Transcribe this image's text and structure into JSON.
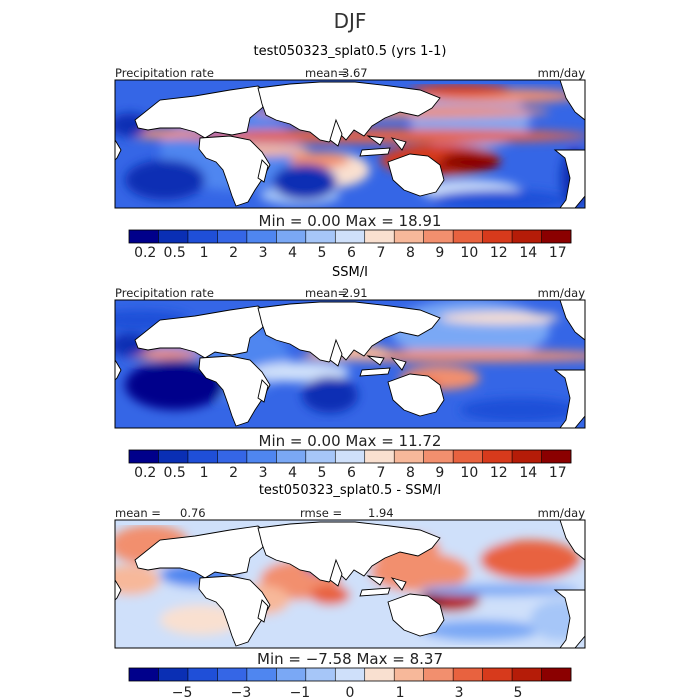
{
  "figure_title": "DJF",
  "chart_data": [
    {
      "type": "heatmap",
      "title": "test050323_splat0.5 (yrs 1-1)",
      "field_label": "Precipitation rate",
      "units": "mm/day",
      "mean_label": "mean=",
      "mean": "3.67",
      "min_label": "Min =",
      "min": "0.00",
      "max_label": "Max =",
      "max": "18.91",
      "colorbar_levels": [
        "0.2",
        "0.5",
        "1",
        "2",
        "3",
        "4",
        "5",
        "6",
        "7",
        "8",
        "9",
        "10",
        "12",
        "14",
        "17"
      ],
      "colorbar_tick_labels": [
        "0.2",
        "0.5",
        "1",
        "2",
        "3",
        "4",
        "5",
        "6",
        "7",
        "8",
        "9",
        "10",
        "12",
        "14",
        "17"
      ],
      "colors": [
        "#00008b",
        "#0a2fb4",
        "#1f4fd8",
        "#3566e6",
        "#4f86f0",
        "#7aa8f5",
        "#a6c6f8",
        "#cfe0fa",
        "#f9e0d0",
        "#f7b89a",
        "#f28f6e",
        "#e8623f",
        "#d73a1c",
        "#b51c08",
        "#8b0000"
      ]
    },
    {
      "type": "heatmap",
      "title": "SSM/I",
      "field_label": "Precipitation rate",
      "units": "mm/day",
      "mean_label": "mean=",
      "mean": "2.91",
      "min_label": "Min =",
      "min": "0.00",
      "max_label": "Max =",
      "max": "11.72",
      "colorbar_levels": [
        "0.2",
        "0.5",
        "1",
        "2",
        "3",
        "4",
        "5",
        "6",
        "7",
        "8",
        "9",
        "10",
        "12",
        "14",
        "17"
      ],
      "colorbar_tick_labels": [
        "0.2",
        "0.5",
        "1",
        "2",
        "3",
        "4",
        "5",
        "6",
        "7",
        "8",
        "9",
        "10",
        "12",
        "14",
        "17"
      ],
      "colors": [
        "#00008b",
        "#0a2fb4",
        "#1f4fd8",
        "#3566e6",
        "#4f86f0",
        "#7aa8f5",
        "#a6c6f8",
        "#cfe0fa",
        "#f9e0d0",
        "#f7b89a",
        "#f28f6e",
        "#e8623f",
        "#d73a1c",
        "#b51c08",
        "#8b0000"
      ]
    },
    {
      "type": "heatmap",
      "title": "test050323_splat0.5 - SSM/I",
      "units": "mm/day",
      "mean_label": "mean =",
      "mean": "0.76",
      "rmse_label": "rmse =",
      "rmse": "1.94",
      "min_label": "Min =",
      "min": "−7.58",
      "max_label": "Max =",
      "max": "8.37",
      "colorbar_levels": [
        -6,
        -5,
        -4,
        -3,
        -2,
        -1,
        -0.5,
        0,
        0.5,
        1,
        2,
        3,
        4,
        5,
        6
      ],
      "colorbar_tick_labels": [
        "−5",
        "−3",
        "−1",
        "0",
        "1",
        "3",
        "5"
      ],
      "colors": [
        "#00008b",
        "#0a2fb4",
        "#1f4fd8",
        "#3566e6",
        "#4f86f0",
        "#7aa8f5",
        "#a6c6f8",
        "#cfe0fa",
        "#f9e0d0",
        "#f7b89a",
        "#f28f6e",
        "#e8623f",
        "#d73a1c",
        "#b51c08",
        "#8b0000"
      ]
    }
  ]
}
